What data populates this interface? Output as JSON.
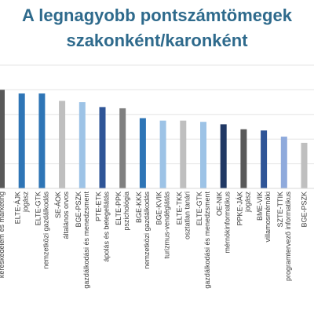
{
  "chart_data": {
    "type": "bar",
    "title_lines": [
      "A legnagyobb pontszámtömegek",
      "szakonként/karonként"
    ],
    "xlabel": "",
    "ylabel": "",
    "grid": true,
    "legend": "none",
    "ylim": [
      0,
      100
    ],
    "categories": [
      [
        "kereskedelem és marketing"
      ],
      [
        "ELTE-ÁJK",
        "jogász"
      ],
      [
        "ELTE-GTK",
        "nemzetközi gazdálkodás"
      ],
      [
        "SE-ÁOK",
        "általános orvos"
      ],
      [
        "BGE-PSZK",
        "gazdálkodási és menedzsment"
      ],
      [
        "PTE-ETK",
        "ápolás és betegellátás"
      ],
      [
        "ELTE-PPK",
        "pszichológia"
      ],
      [
        "BGE-KKK",
        "nemzetközi gazdálkodás"
      ],
      [
        "BGE-KVIK",
        "turizmus-vendéglátás"
      ],
      [
        "ELTE-TKK",
        "osztatlan tanári"
      ],
      [
        "ELTE-GTK",
        "gazdálkodási és menedzsment"
      ],
      [
        "OE-NIK",
        "mérnökinformatikus"
      ],
      [
        "PPKE-JÁK",
        "jogász"
      ],
      [
        "BME-VIK",
        "villamosmérnöki"
      ],
      [
        "SZTE-TTIK",
        "programtervező informatikus"
      ],
      [
        "BGE-PSZK"
      ]
    ],
    "values": [
      80,
      77,
      77,
      71,
      70,
      66,
      65,
      57,
      55,
      55,
      54,
      52,
      48,
      47,
      42,
      37
    ],
    "colors": [
      "#595959",
      "#2e75b6",
      "#2e75b6",
      "#bfbfbf",
      "#9dc3e6",
      "#2f5597",
      "#808080",
      "#2e75b6",
      "#9dc3e6",
      "#bfbfbf",
      "#9dc3e6",
      "#203864",
      "#595959",
      "#2f5597",
      "#8faadc",
      "#bfbfbf"
    ]
  }
}
